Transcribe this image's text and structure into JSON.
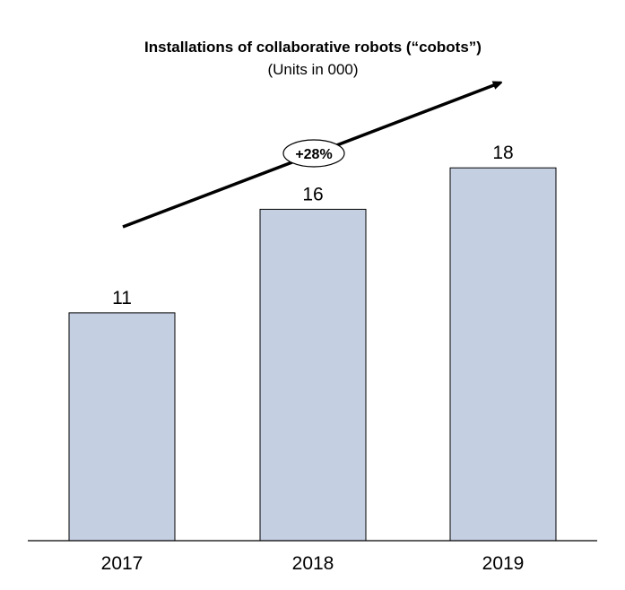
{
  "chart_data": {
    "type": "bar",
    "title": "Installations of collaborative robots (“cobots”)",
    "subtitle": "(Units in 000)",
    "categories": [
      "2017",
      "2018",
      "2019"
    ],
    "values": [
      11,
      16,
      18
    ],
    "data_labels": [
      "11",
      "16",
      "18"
    ],
    "ylim": [
      0,
      25
    ],
    "grid": false,
    "legend": "none",
    "annotation": {
      "text": "+28%",
      "type": "growth-arrow"
    },
    "colors": {
      "bar_fill": "#c5cfe2",
      "bar_stroke": "#000000",
      "axis": "#000000",
      "arrow": "#000000"
    }
  }
}
